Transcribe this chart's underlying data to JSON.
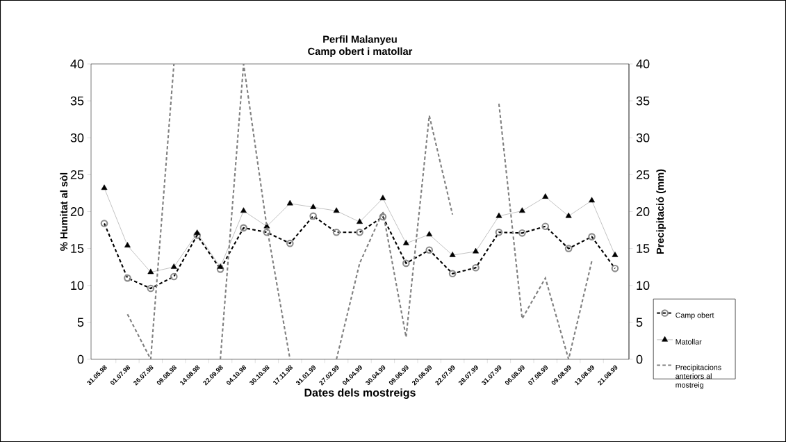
{
  "chart_data": {
    "type": "line",
    "title": "Perfil Malanyeu",
    "subtitle": "Camp obert i matollar",
    "xlabel": "Dates dels mostreigs",
    "ylabel": "% Humitat al sòl",
    "y2label": "Precipitació (mm)",
    "categories": [
      "31.05.98",
      "01.07.98",
      "26.07.98",
      "09.08.98",
      "14.08.98",
      "22.09.98",
      "04.10.98",
      "30.10.98",
      "17.11.98",
      "31.01.99",
      "27.02.99",
      "04.04.99",
      "30.04.99",
      "09.06.99",
      "20.06.99",
      "22.07.99",
      "28.07.99",
      "31.07.99",
      "06.08.99",
      "07.08.99",
      "09.08.99",
      "13.08.99",
      "21.08.99"
    ],
    "series": [
      {
        "name": "Camp obert",
        "color": "#000000",
        "marker": "circle",
        "line_style": "dashed",
        "values": [
          18.4,
          11.0,
          9.6,
          11.2,
          16.8,
          12.2,
          17.8,
          17.2,
          15.7,
          19.4,
          17.2,
          17.2,
          19.3,
          13.0,
          14.8,
          11.6,
          12.4,
          17.2,
          17.1,
          18.0,
          15.0,
          16.6,
          12.3
        ]
      },
      {
        "name": "Matollar",
        "color": "#000000",
        "marker": "triangle",
        "line_style": "solid",
        "values": [
          23.2,
          15.4,
          11.8,
          12.5,
          17.1,
          12.5,
          20.1,
          18.0,
          21.1,
          20.6,
          20.1,
          18.6,
          21.8,
          15.7,
          16.9,
          14.1,
          14.6,
          19.4,
          20.1,
          22.0,
          19.4,
          21.5,
          14.1
        ]
      },
      {
        "name": "Precipitacions anteriors al mostreig",
        "color": "#808080",
        "marker": "none",
        "line_style": "dashed",
        "axis": "y2",
        "values": [
          null,
          6.1,
          0,
          40,
          null,
          0,
          40,
          18,
          0,
          null,
          0,
          13,
          20,
          3,
          33,
          19.6,
          null,
          34.6,
          5.5,
          11,
          0,
          13.3,
          null
        ]
      }
    ],
    "ylim": [
      0,
      40
    ],
    "yticks": [
      0,
      5,
      10,
      15,
      20,
      25,
      30,
      35,
      40
    ],
    "y2lim": [
      0,
      40
    ],
    "y2ticks": [
      0,
      5,
      10,
      15,
      20,
      25,
      30,
      35,
      40
    ],
    "legend": "bottom right",
    "grid": false
  }
}
